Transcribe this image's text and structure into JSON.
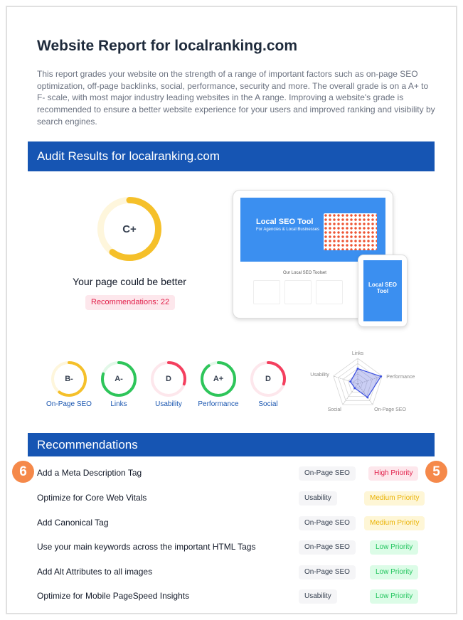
{
  "header": {
    "title": "Website Report for localranking.com",
    "intro": "This report grades your website on the strength of a range of important factors such as on-page SEO optimization, off-page backlinks, social, performance, security and more. The overall grade is on a A+ to F- scale, with most major industry leading websites in the A range. Improving a website's grade is recommended to ensure a better website experience for your users and improved ranking and visibility by search engines."
  },
  "audit": {
    "title": "Audit Results for localranking.com",
    "grade": "C+",
    "grade_fraction": 0.6,
    "grade_color": "#f5c02a",
    "summary": "Your page could be better",
    "recommendations_label": "Recommendations: 22",
    "preview": {
      "hero_title": "Local SEO Tool",
      "hero_subtitle": "For Agencies & Local Businesses",
      "section_title": "Our Local SEO Toolset",
      "phone_title": "Local SEO Tool"
    },
    "categories": [
      {
        "label": "On-Page SEO",
        "grade": "B-",
        "fraction": 0.6,
        "color": "#f5c02a",
        "track": "#fef6dc"
      },
      {
        "label": "Links",
        "grade": "A-",
        "fraction": 0.8,
        "color": "#2ec55a",
        "track": "#e2f8e8"
      },
      {
        "label": "Usability",
        "grade": "D",
        "fraction": 0.3,
        "color": "#f43f5e",
        "track": "#fde7ec"
      },
      {
        "label": "Performance",
        "grade": "A+",
        "fraction": 0.9,
        "color": "#2ec55a",
        "track": "#e2f8e8"
      },
      {
        "label": "Social",
        "grade": "D",
        "fraction": 0.3,
        "color": "#f43f5e",
        "track": "#fde7ec"
      }
    ],
    "radar": {
      "axes": [
        "Links",
        "Performance",
        "On-Page SEO",
        "Social",
        "Usability"
      ],
      "values": [
        0.6,
        0.95,
        0.65,
        0.2,
        0.3
      ]
    }
  },
  "recommendations": {
    "title": "Recommendations",
    "items": [
      {
        "label": "Add a Meta Description Tag",
        "category": "On-Page SEO",
        "priority": "High Priority",
        "level": "high"
      },
      {
        "label": "Optimize for Core Web Vitals",
        "category": "Usability",
        "priority": "Medium Priority",
        "level": "medium"
      },
      {
        "label": "Add Canonical Tag",
        "category": "On-Page SEO",
        "priority": "Medium Priority",
        "level": "medium"
      },
      {
        "label": "Use your main keywords across the important HTML Tags",
        "category": "On-Page SEO",
        "priority": "Low Priority",
        "level": "low"
      },
      {
        "label": "Add Alt Attributes to all images",
        "category": "On-Page SEO",
        "priority": "Low Priority",
        "level": "low"
      },
      {
        "label": "Optimize for Mobile PageSpeed Insights",
        "category": "Usability",
        "priority": "Low Priority",
        "level": "low"
      }
    ]
  },
  "markers": [
    "6",
    "5"
  ],
  "priority_colors": {
    "high": {
      "bg": "#fde7ec",
      "fg": "#e11d48"
    },
    "medium": {
      "bg": "#fef6d6",
      "fg": "#eab308"
    },
    "low": {
      "bg": "#dcfce7",
      "fg": "#22c55e"
    }
  }
}
